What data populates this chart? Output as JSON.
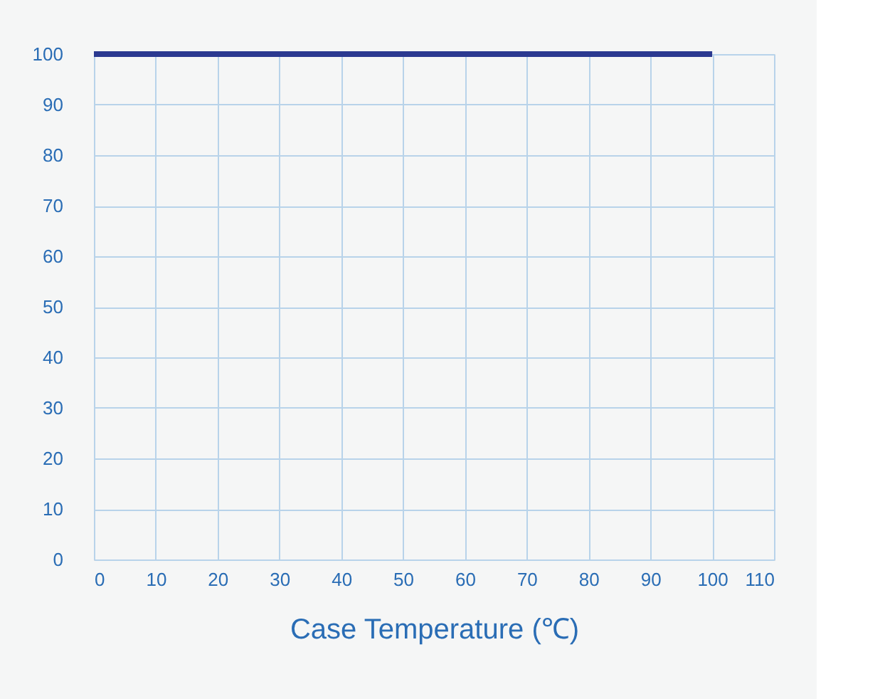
{
  "chart_data": {
    "type": "line",
    "xlabel": "Case Temperature (℃)",
    "x": [
      0,
      100
    ],
    "series": [
      {
        "color": "#2b3990",
        "values": [
          100,
          100
        ]
      }
    ],
    "xlim": [
      0,
      110
    ],
    "xticks": [
      0,
      10,
      20,
      30,
      40,
      50,
      60,
      70,
      80,
      90,
      100,
      110
    ],
    "ylim": [
      0,
      100
    ],
    "yticks": [
      0,
      10,
      20,
      30,
      40,
      50,
      60,
      70,
      80,
      90,
      100
    ],
    "grid": true,
    "legend": false,
    "marker": "none",
    "line_style": "solid"
  }
}
